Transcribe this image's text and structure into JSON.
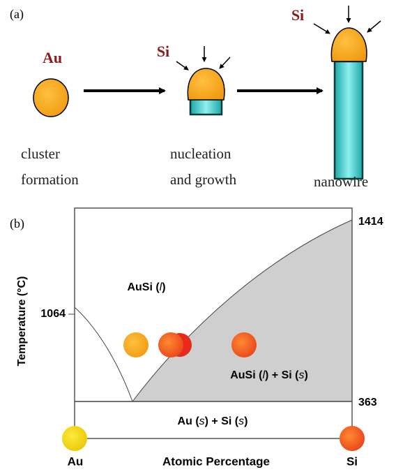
{
  "panel_a": {
    "label": "(a)",
    "stage1": {
      "species": "Au",
      "caption": [
        "cluster",
        "formation"
      ]
    },
    "stage2": {
      "species": "Si",
      "caption": [
        "nucleation",
        "and growth"
      ]
    },
    "stage3": {
      "species": "Si",
      "caption": [
        "nanowire"
      ]
    }
  },
  "panel_b": {
    "label": "(b)",
    "y_axis_label": "Temperature (°C)",
    "x_axis_label": "Atomic Percentage",
    "left_element": "Au",
    "right_element": "Si",
    "au_melting": 1064,
    "si_melting": 1414,
    "eutectic": 363,
    "liquid_region": [
      "AuSi (",
      "l",
      ")"
    ],
    "two_phase_region": [
      "AuSi (",
      "l",
      ") + Si (",
      "s",
      ")"
    ],
    "solid_region": [
      "Au (",
      "s",
      ") + Si (",
      "s",
      ")"
    ]
  }
}
